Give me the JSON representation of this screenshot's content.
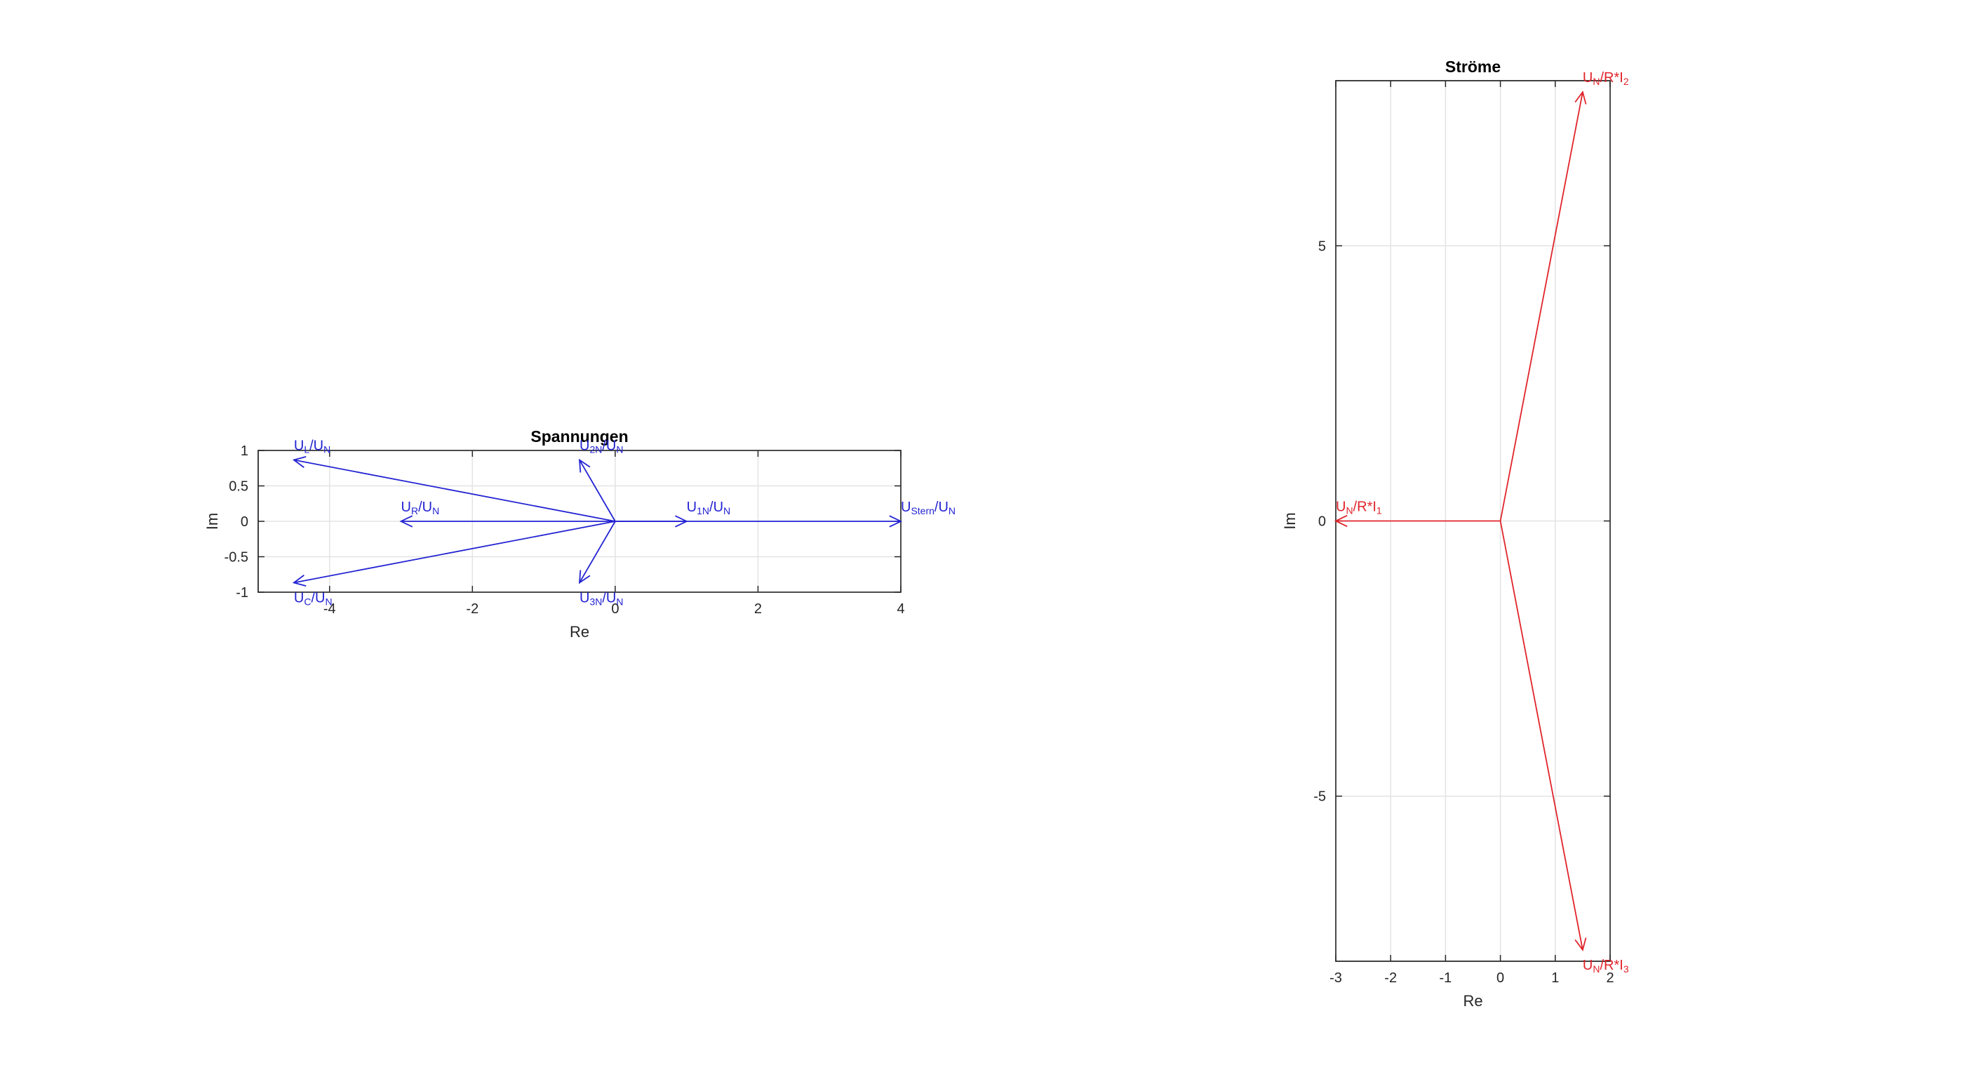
{
  "chart_data": [
    {
      "type": "phasor",
      "title": "Spannungen",
      "xlabel": "Re",
      "ylabel": "Im",
      "xlim": [
        -5,
        4
      ],
      "ylim": [
        -1,
        1
      ],
      "xticks": [
        -4,
        -2,
        0,
        2,
        4
      ],
      "yticks": [
        -1,
        -0.5,
        0,
        0.5,
        1
      ],
      "grid": true,
      "color": "#2323d2",
      "vectors": [
        {
          "label": [
            "U",
            "L",
            "/U",
            "N"
          ],
          "re": -4.5,
          "im": 0.866
        },
        {
          "label": [
            "U",
            "R",
            "/U",
            "N"
          ],
          "re": -3,
          "im": 0
        },
        {
          "label": [
            "U",
            "C",
            "/U",
            "N"
          ],
          "re": -4.5,
          "im": -0.866
        },
        {
          "label": [
            "U",
            "2N",
            "/U",
            "N"
          ],
          "re": -0.5,
          "im": 0.866
        },
        {
          "label": [
            "U",
            "1N",
            "/U",
            "N"
          ],
          "re": 1,
          "im": 0
        },
        {
          "label": [
            "U",
            "3N",
            "/U",
            "N"
          ],
          "re": -0.5,
          "im": -0.866
        },
        {
          "label": [
            "U",
            "Stern",
            "/U",
            "N"
          ],
          "re": 4,
          "im": 0
        }
      ]
    },
    {
      "type": "phasor",
      "title": "Ströme",
      "xlabel": "Re",
      "ylabel": "Im",
      "xlim": [
        -3,
        2
      ],
      "ylim": [
        -8,
        8
      ],
      "xticks": [
        -3,
        -2,
        -1,
        0,
        1,
        2
      ],
      "yticks": [
        -5,
        0,
        5
      ],
      "grid": true,
      "color": "#e0242b",
      "vectors": [
        {
          "label": [
            "U",
            "N",
            "/R*I",
            "1"
          ],
          "re": -3,
          "im": 0
        },
        {
          "label": [
            "U",
            "N",
            "/R*I",
            "2"
          ],
          "re": 1.5,
          "im": 7.794
        },
        {
          "label": [
            "U",
            "N",
            "/R*I",
            "3"
          ],
          "re": 1.5,
          "im": -7.794
        }
      ]
    }
  ]
}
